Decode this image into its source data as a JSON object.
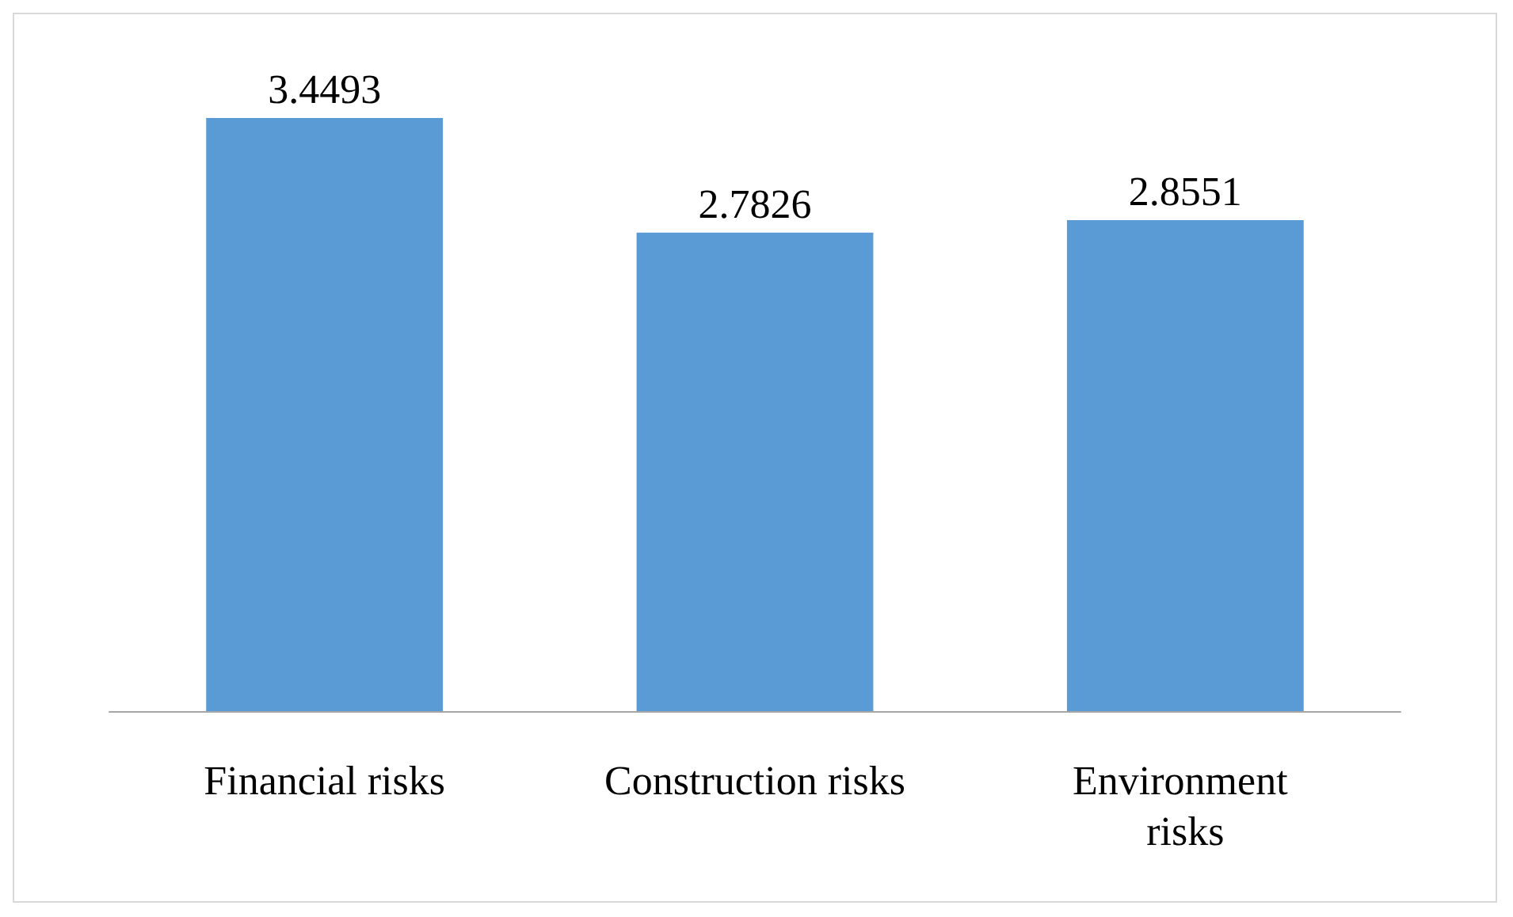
{
  "chart_data": {
    "type": "bar",
    "categories": [
      "Financial risks",
      "Construction risks",
      "Environment risks"
    ],
    "values": [
      3.4493,
      2.7826,
      2.8551
    ],
    "color": "#5b9bd5",
    "data_labels": true
  }
}
